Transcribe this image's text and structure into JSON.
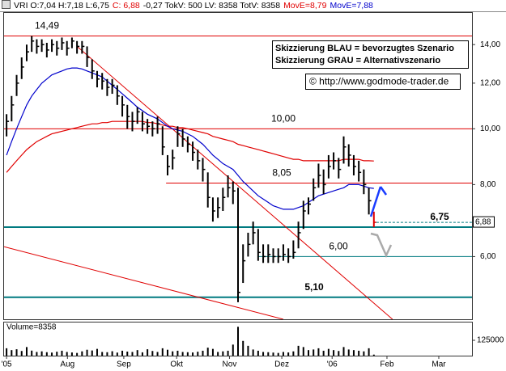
{
  "chart_data": {
    "type": "ohlc",
    "header": [
      {
        "text": "VRI O:7,04 H:7,18 L:6,75",
        "color": "#000000"
      },
      {
        "text": "C: 6,88",
        "color": "#e00000"
      },
      {
        "text": "-0,27 TokV: 500 LV: 8358 TotV: 8358",
        "color": "#000000"
      },
      {
        "text": "MovE=8,79",
        "color": "#e00000"
      },
      {
        "text": "MovE=7,88",
        "color": "#0000cc"
      }
    ],
    "xlim": [
      0,
      93
    ],
    "xticks": [
      {
        "value": 0.5,
        "label": "'05"
      },
      {
        "value": 12.6,
        "label": "Aug"
      },
      {
        "value": 23.8,
        "label": "Sep"
      },
      {
        "value": 34.3,
        "label": "Okt"
      },
      {
        "value": 44.8,
        "label": "Nov"
      },
      {
        "value": 55.2,
        "label": "Dez"
      },
      {
        "value": 65.2,
        "label": "'06"
      },
      {
        "value": 76.1,
        "label": "Feb"
      },
      {
        "value": 86.4,
        "label": "Mar"
      }
    ],
    "ylim": [
      4.67,
      15.94
    ],
    "log_scale": true,
    "yticks": [
      {
        "value": 6,
        "label": "6,00"
      },
      {
        "value": 8,
        "label": "8,00"
      },
      {
        "value": 10,
        "label": "10,00"
      },
      {
        "value": 12,
        "label": "12,00"
      },
      {
        "value": 14,
        "label": "14,00"
      }
    ],
    "color": "#000000",
    "last_color": "#e00000",
    "high": [
      10.6,
      11.4,
      12.4,
      13.3,
      14.0,
      14.49,
      14.3,
      14.3,
      14.1,
      14.3,
      14.2,
      14.4,
      14.2,
      14.4,
      14.2,
      14.2,
      13.9,
      13.2,
      12.6,
      12.5,
      12.2,
      12.2,
      11.9,
      11.4,
      11.0,
      10.7,
      10.9,
      10.7,
      10.4,
      10.3,
      10.5,
      10.1,
      9.0,
      9.2,
      10.1,
      10.0,
      9.7,
      9.5,
      9.2,
      8.9,
      8.4,
      7.6,
      7.6,
      7.9,
      8.3,
      8.1,
      7.9,
      6.3,
      6.6,
      6.9,
      6.7,
      6.3,
      6.3,
      6.2,
      6.2,
      6.3,
      6.2,
      6.4,
      6.9,
      7.5,
      7.6,
      8.2,
      8.7,
      8.5,
      9.0,
      9.1,
      8.9,
      9.7,
      9.4,
      9.0,
      8.8,
      8.5,
      7.9,
      7.18
    ],
    "low": [
      9.7,
      10.3,
      11.4,
      12.2,
      13.1,
      13.6,
      13.5,
      13.6,
      13.3,
      13.6,
      13.4,
      13.7,
      13.4,
      13.8,
      13.5,
      13.5,
      12.8,
      12.2,
      11.8,
      11.7,
      11.4,
      11.5,
      11.0,
      10.5,
      10.0,
      9.9,
      10.2,
      9.9,
      9.8,
      9.7,
      9.8,
      9.0,
      8.3,
      8.5,
      9.3,
      9.3,
      9.1,
      8.8,
      8.5,
      8.1,
      7.3,
      6.9,
      7.0,
      7.2,
      7.6,
      7.4,
      5.0,
      5.4,
      6.0,
      6.3,
      5.9,
      5.85,
      5.85,
      5.85,
      5.85,
      5.9,
      5.85,
      5.95,
      6.2,
      6.7,
      7.1,
      7.5,
      7.9,
      7.7,
      8.2,
      8.5,
      8.2,
      8.7,
      8.6,
      8.3,
      8.1,
      7.7,
      7.1,
      6.75
    ],
    "close": [
      10.3,
      11.0,
      12.0,
      12.8,
      13.6,
      14.2,
      13.9,
      14.0,
      13.7,
      14.0,
      13.8,
      14.1,
      13.8,
      14.2,
      13.9,
      13.9,
      13.3,
      12.6,
      12.2,
      12.1,
      11.8,
      11.9,
      11.4,
      11.0,
      10.5,
      10.3,
      10.7,
      10.2,
      10.1,
      10.0,
      10.2,
      9.3,
      8.6,
      8.9,
      9.8,
      9.6,
      9.4,
      9.1,
      8.8,
      8.5,
      7.6,
      7.2,
      7.3,
      7.6,
      7.9,
      7.8,
      5.2,
      5.9,
      6.3,
      6.6,
      6.1,
      6.0,
      6.05,
      6.0,
      6.0,
      6.05,
      6.0,
      6.1,
      6.6,
      7.2,
      7.4,
      7.9,
      8.3,
      8.0,
      8.6,
      8.8,
      8.5,
      9.3,
      9.0,
      8.6,
      8.4,
      8.0,
      7.5,
      6.88
    ],
    "moving_averages": [
      {
        "color": "#e00000",
        "values": [
          8.4,
          8.6,
          8.8,
          9.0,
          9.2,
          9.35,
          9.5,
          9.6,
          9.7,
          9.8,
          9.85,
          9.9,
          9.95,
          10.0,
          10.05,
          10.1,
          10.15,
          10.2,
          10.2,
          10.25,
          10.25,
          10.3,
          10.3,
          10.3,
          10.3,
          10.3,
          10.3,
          10.3,
          10.25,
          10.25,
          10.2,
          10.15,
          10.1,
          10.1,
          10.05,
          10.05,
          10.0,
          9.95,
          9.9,
          9.85,
          9.8,
          9.7,
          9.65,
          9.6,
          9.55,
          9.5,
          9.4,
          9.35,
          9.3,
          9.25,
          9.2,
          9.15,
          9.1,
          9.05,
          9.0,
          8.95,
          8.9,
          8.85,
          8.85,
          8.8,
          8.8,
          8.8,
          8.8,
          8.8,
          8.8,
          8.8,
          8.8,
          8.85,
          8.85,
          8.85,
          8.85,
          8.8,
          8.8,
          8.79
        ]
      },
      {
        "color": "#0000cc",
        "values": [
          9.0,
          9.5,
          10.0,
          10.5,
          11.0,
          11.4,
          11.7,
          12.0,
          12.2,
          12.4,
          12.5,
          12.6,
          12.7,
          12.75,
          12.75,
          12.7,
          12.6,
          12.5,
          12.4,
          12.3,
          12.1,
          11.9,
          11.7,
          11.5,
          11.3,
          11.1,
          10.9,
          10.75,
          10.6,
          10.5,
          10.4,
          10.25,
          10.1,
          10.0,
          9.95,
          9.9,
          9.8,
          9.7,
          9.55,
          9.4,
          9.2,
          9.0,
          8.85,
          8.7,
          8.6,
          8.5,
          8.3,
          8.1,
          7.95,
          7.8,
          7.65,
          7.55,
          7.45,
          7.35,
          7.3,
          7.25,
          7.25,
          7.25,
          7.3,
          7.35,
          7.45,
          7.55,
          7.65,
          7.7,
          7.75,
          7.8,
          7.85,
          7.9,
          8.0,
          8.0,
          8.0,
          7.95,
          7.9,
          7.88
        ]
      }
    ],
    "levels": [
      {
        "value": 14.49,
        "label": "14,49",
        "color": "#e00000"
      },
      {
        "value": 10,
        "label": "10,00",
        "color": "#e00000"
      },
      {
        "value": 8.05,
        "label": "8,05",
        "color": "#e00000",
        "x_start": 32.2
      },
      {
        "value": 6.75,
        "label": "6,75",
        "color": "#007a80",
        "bold": true
      },
      {
        "value": 6,
        "label": "6,00",
        "color": "#007a80",
        "x_start": 50.4
      },
      {
        "value": 5.1,
        "label": "5,10",
        "color": "#007a80",
        "bold": true
      }
    ],
    "trendlines": [
      {
        "x": [
          14.5,
          77.2
        ],
        "y": [
          13.9,
          4.67
        ],
        "color": "#e00000"
      },
      {
        "x": [
          0,
          55.5
        ],
        "y": [
          6.24,
          4.67
        ],
        "color": "#e00000"
      }
    ],
    "current": {
      "value": 6.88,
      "label": "6,88",
      "color": "#007a80"
    },
    "volume": {
      "label": "Volume=8358",
      "color": "#000000",
      "ylim": [
        0,
        270000
      ],
      "yticks": [
        125000
      ],
      "values": [
        60000,
        45000,
        52000,
        38000,
        70000,
        41000,
        30000,
        35000,
        28000,
        25000,
        32000,
        40000,
        30000,
        26000,
        22000,
        35000,
        48000,
        42000,
        55000,
        30000,
        28000,
        36000,
        25000,
        40000,
        33000,
        30000,
        45000,
        27000,
        52000,
        38000,
        30000,
        60000,
        48000,
        35000,
        40000,
        30000,
        28000,
        26000,
        32000,
        40000,
        65000,
        55000,
        30000,
        35000,
        40000,
        90000,
        235000,
        120000,
        80000,
        50000,
        40000,
        30000,
        28000,
        25000,
        22000,
        30000,
        26000,
        35000,
        80000,
        70000,
        45000,
        50000,
        60000,
        40000,
        55000,
        45000,
        38000,
        70000,
        50000,
        45000,
        40000,
        35000,
        60000,
        8358
      ]
    }
  },
  "legend_box": [
    "Skizzierung BLAU = bevorzugtes Szenario",
    "Skizzierung GRAU = Alternativszenario"
  ],
  "copyright": "© http://www.godmode-trader.de"
}
